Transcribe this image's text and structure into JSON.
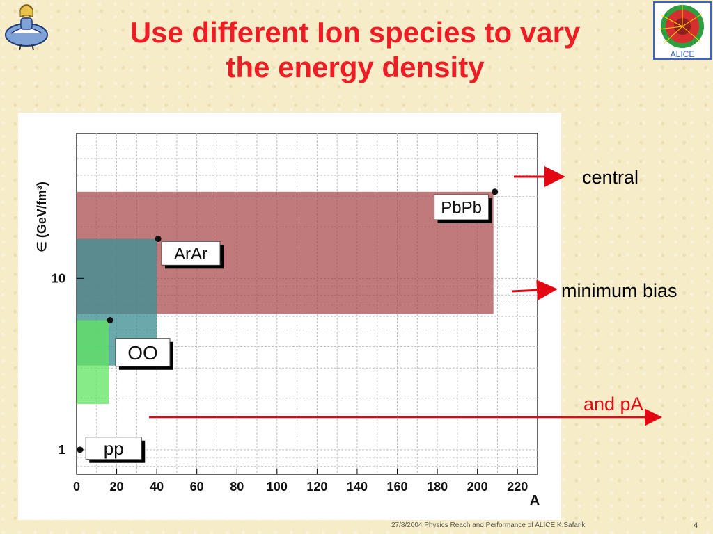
{
  "slide": {
    "title_line1": "Use different Ion species to vary",
    "title_line2": "the energy density",
    "footer": "27/8/2004 Physics Reach and Performance of ALICE  K.Safarik",
    "page_number": "4",
    "logo_text": "ALICE"
  },
  "annotations": {
    "central": "central",
    "minimum_bias": "minimum bias",
    "and_pA": "and pA"
  },
  "colors": {
    "title": "#ee1c24",
    "pbpb": "#a8474a",
    "arar": "#3f8f93",
    "oo": "#5fe65f",
    "arrow": "#e30613"
  },
  "chart_data": {
    "type": "area",
    "xlabel": "A",
    "ylabel": "∈ (GeV/fm³)",
    "xlim": [
      0,
      230
    ],
    "ylim": [
      0.72,
      70
    ],
    "y_scale": "log",
    "grid": true,
    "x_ticks": [
      0,
      20,
      40,
      60,
      80,
      100,
      120,
      140,
      160,
      180,
      200,
      220
    ],
    "y_ticks": [
      {
        "value": 1,
        "label": "1"
      },
      {
        "value": 10,
        "label": "10"
      }
    ],
    "series": [
      {
        "name": "PbPb",
        "A": 208,
        "min_bias": 6.2,
        "central": 32
      },
      {
        "name": "ArAr",
        "A": 40,
        "min_bias": 3.1,
        "central": 17
      },
      {
        "name": "OO",
        "A": 16,
        "min_bias": 1.85,
        "central": 5.7
      }
    ],
    "points": [
      {
        "name": "pp",
        "A": 1,
        "value": 1.0
      }
    ]
  }
}
